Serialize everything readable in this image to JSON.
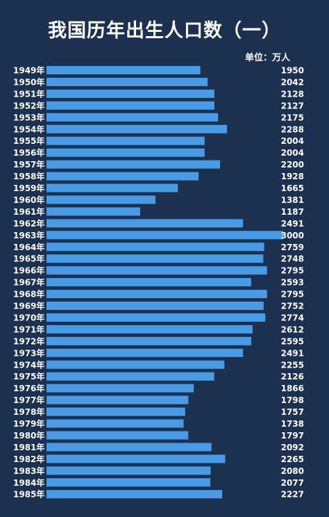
{
  "title": "我国历年出生人口数（一）",
  "unit": "单位：万人",
  "colors": {
    "background": "#1c3050",
    "bar": "#4a9be6",
    "text": "#ffffff"
  },
  "chart_data": {
    "type": "bar",
    "orientation": "horizontal",
    "title": "我国历年出生人口数（一）",
    "unit": "万人",
    "categories": [
      "1949年",
      "1950年",
      "1951年",
      "1952年",
      "1953年",
      "1954年",
      "1955年",
      "1956年",
      "1957年",
      "1958年",
      "1959年",
      "1960年",
      "1961年",
      "1962年",
      "1963年",
      "1964年",
      "1965年",
      "1966年",
      "1967年",
      "1968年",
      "1969年",
      "1970年",
      "1971年",
      "1972年",
      "1973年",
      "1974年",
      "1975年",
      "1976年",
      "1977年",
      "1978年",
      "1979年",
      "1980年",
      "1981年",
      "1982年",
      "1983年",
      "1984年",
      "1985年"
    ],
    "values": [
      1950,
      2042,
      2128,
      2127,
      2175,
      2288,
      2004,
      2004,
      2200,
      1928,
      1665,
      1381,
      1187,
      2491,
      3000,
      2759,
      2748,
      2795,
      2593,
      2795,
      2752,
      2774,
      2612,
      2595,
      2491,
      2255,
      2126,
      1866,
      1798,
      1757,
      1738,
      1797,
      2092,
      2265,
      2080,
      2077,
      2227
    ],
    "xlim": [
      0,
      3000
    ],
    "grid": false,
    "legend": "none"
  }
}
